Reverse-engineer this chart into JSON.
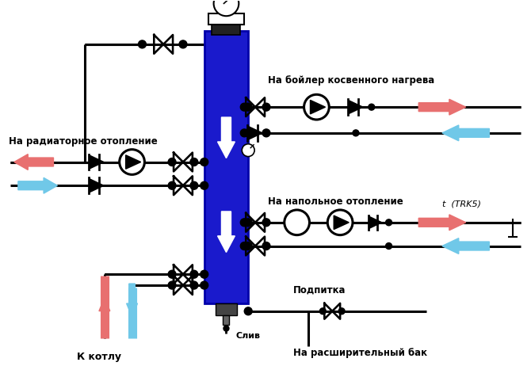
{
  "bg_color": "#ffffff",
  "pipe_color": "#000000",
  "pipe_lw": 2.2,
  "arrow_hot_color": "#e87070",
  "arrow_cold_color": "#70c8e8",
  "hyd_color": "#1a1acc",
  "hyd_edge": "#0000aa",
  "labels": {
    "boiler_indirect": "На бойлер косвенного нагрева",
    "radiator": "На радиаторное отопление",
    "floor": "На напольное отопление",
    "drain": "Слив",
    "makeup": "Подпитка",
    "expansion": "На расширительный бак",
    "boiler_from": "К котлу",
    "trk5": "t  (TRK5)"
  },
  "figsize": [
    6.7,
    4.62
  ],
  "dpi": 100
}
